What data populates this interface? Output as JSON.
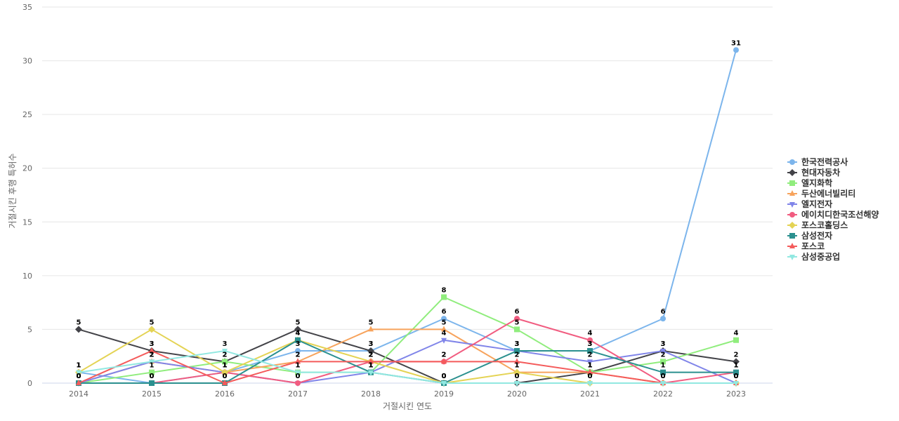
{
  "chart_data": {
    "type": "line",
    "title": "",
    "xlabel": "거절시킨 연도",
    "ylabel": "거절시킨 후행 특허수",
    "ylim": [
      0,
      35
    ],
    "yticks": [
      0,
      5,
      10,
      15,
      20,
      25,
      30,
      35
    ],
    "grid": true,
    "legend_position": "right",
    "categories": [
      "2014",
      "2015",
      "2016",
      "2017",
      "2018",
      "2019",
      "2020",
      "2021",
      "2022",
      "2023"
    ],
    "series": [
      {
        "name": "한국전력공사",
        "color": "#7cb5ec",
        "marker": "circle",
        "values": [
          1,
          0,
          1,
          3,
          3,
          6,
          3,
          3,
          6,
          31
        ]
      },
      {
        "name": "현대자동차",
        "color": "#434348",
        "marker": "diamond",
        "values": [
          5,
          3,
          2,
          5,
          3,
          0,
          0,
          1,
          3,
          2
        ]
      },
      {
        "name": "엘지화학",
        "color": "#90ed7d",
        "marker": "square",
        "values": [
          0,
          1,
          2,
          1,
          1,
          8,
          5,
          1,
          2,
          4
        ]
      },
      {
        "name": "두산에너빌리티",
        "color": "#f7a35c",
        "marker": "triangle",
        "values": [
          0,
          2,
          1,
          2,
          5,
          5,
          1,
          1,
          0,
          0
        ]
      },
      {
        "name": "엘지전자",
        "color": "#8085e9",
        "marker": "triangle-down",
        "values": [
          0,
          2,
          1,
          0,
          1,
          4,
          3,
          2,
          3,
          0
        ]
      },
      {
        "name": "에이치디한국조선해양",
        "color": "#f15c80",
        "marker": "circle",
        "values": [
          0,
          0,
          1,
          0,
          2,
          2,
          6,
          4,
          0,
          1
        ]
      },
      {
        "name": "포스코홀딩스",
        "color": "#e4d354",
        "marker": "diamond",
        "values": [
          1,
          5,
          1,
          4,
          2,
          0,
          1,
          0,
          0,
          0
        ]
      },
      {
        "name": "삼성전자",
        "color": "#2b908f",
        "marker": "square",
        "values": [
          0,
          0,
          0,
          4,
          1,
          0,
          3,
          3,
          1,
          1
        ]
      },
      {
        "name": "포스코",
        "color": "#f45b5b",
        "marker": "triangle",
        "values": [
          0,
          3,
          0,
          2,
          2,
          2,
          2,
          1,
          0,
          0
        ]
      },
      {
        "name": "삼성중공업",
        "color": "#91e8e1",
        "marker": "triangle-down",
        "values": [
          1,
          2,
          3,
          1,
          1,
          0,
          0,
          0,
          0,
          0
        ]
      }
    ]
  }
}
